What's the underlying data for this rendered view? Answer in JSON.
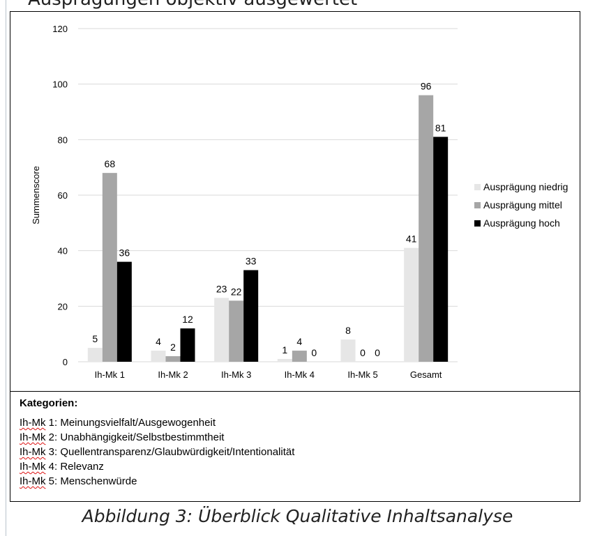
{
  "page_header_fragment": "Ausprägungen objektiv ausgewertet",
  "chart_data": {
    "type": "bar",
    "categories": [
      "Ih-Mk 1",
      "Ih-Mk 2",
      "Ih-Mk 3",
      "Ih-Mk 4",
      "Ih-Mk  5",
      "Gesamt"
    ],
    "series": [
      {
        "name": "Ausprägung niedrig",
        "values": [
          5,
          4,
          23,
          1,
          8,
          41
        ],
        "color": "#e6e6e6"
      },
      {
        "name": "Ausprägung mittel",
        "values": [
          68,
          2,
          22,
          4,
          0,
          96
        ],
        "color": "#a6a6a6"
      },
      {
        "name": "Ausprägung hoch",
        "values": [
          36,
          12,
          33,
          0,
          0,
          81
        ],
        "color": "#000000"
      }
    ],
    "ylabel": "Summenscore",
    "ylim": [
      0,
      120
    ],
    "yticks": [
      0,
      20,
      40,
      60,
      80,
      100,
      120
    ],
    "grid": true,
    "legend_position": "right"
  },
  "categories_box": {
    "title": "Kategorien:",
    "items": [
      {
        "abbr": "Ih-Mk",
        "text": " 1: Meinungsvielfalt/Ausgewogenheit"
      },
      {
        "abbr": "Ih-Mk",
        "text": " 2: Unabhängigkeit/Selbstbestimmtheit"
      },
      {
        "abbr": "Ih-Mk",
        "text": " 3: Quellentransparenz/Glaubwürdigkeit/Intentionalität"
      },
      {
        "abbr": "Ih-Mk",
        "text": " 4: Relevanz"
      },
      {
        "abbr": "Ih-Mk",
        "text": " 5: Menschenwürde"
      }
    ]
  },
  "caption": "Abbildung 3: Überblick Qualitative Inhaltsanalyse"
}
